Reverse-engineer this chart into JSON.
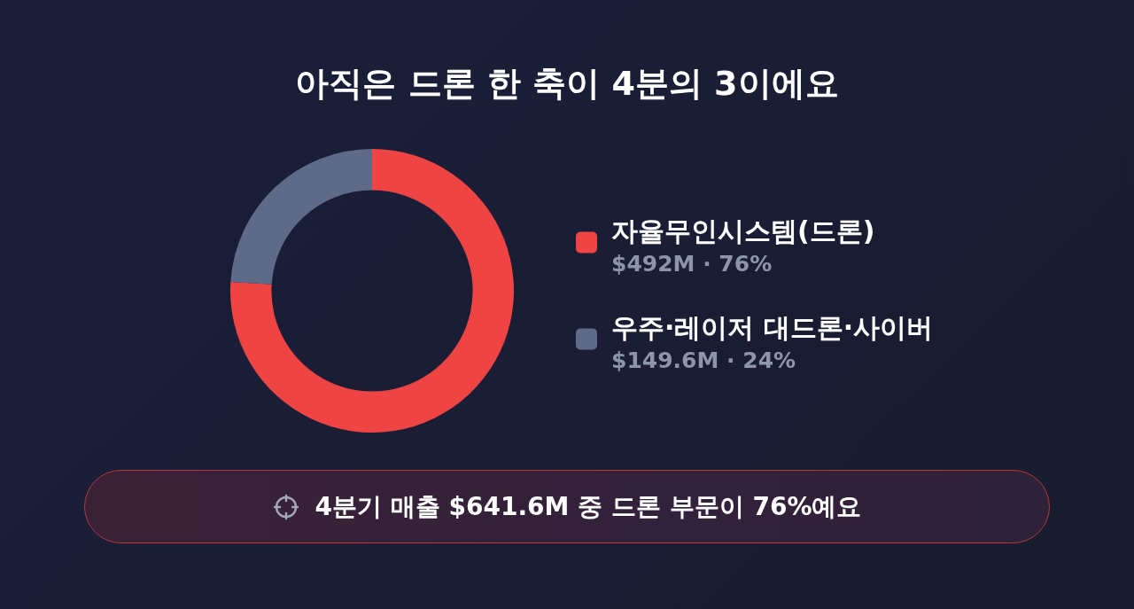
{
  "chart_data": {
    "type": "donut",
    "title": "아직은 드론 한 축이 4분의 3이에요",
    "categories": [
      "자율무인시스템(드론)",
      "우주·레이저 대드론·사이버"
    ],
    "values": [
      76,
      24
    ],
    "value_labels": [
      "$492M · 76%",
      "$149.6M · 24%"
    ],
    "colors": [
      "#ef4444",
      "#5e6b88"
    ],
    "legend": "right",
    "annotations": [
      "4분기 매출 $641.6M 중 드론 부문이 76%예요"
    ]
  }
}
